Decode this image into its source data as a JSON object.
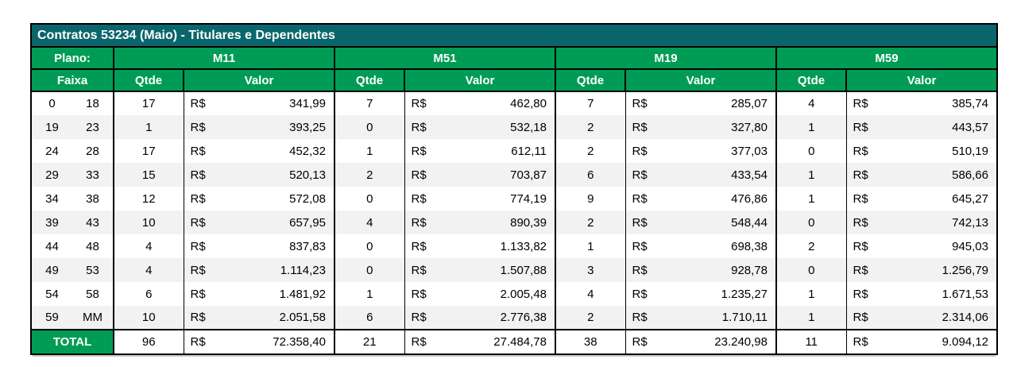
{
  "title": "Contratos 53234 (Maio) - Titulares e Dependentes",
  "header": {
    "plano_label": "Plano:",
    "faixa_label": "Faixa",
    "qtde_label": "Qtde",
    "valor_label": "Valor",
    "currency": "R$",
    "plans": [
      "M11",
      "M51",
      "M19",
      "M59"
    ]
  },
  "rows": [
    {
      "faixa": [
        "0",
        "18"
      ],
      "plans": [
        {
          "qtde": "17",
          "valor": "341,99"
        },
        {
          "qtde": "7",
          "valor": "462,80"
        },
        {
          "qtde": "7",
          "valor": "285,07"
        },
        {
          "qtde": "4",
          "valor": "385,74"
        }
      ]
    },
    {
      "faixa": [
        "19",
        "23"
      ],
      "plans": [
        {
          "qtde": "1",
          "valor": "393,25"
        },
        {
          "qtde": "0",
          "valor": "532,18"
        },
        {
          "qtde": "2",
          "valor": "327,80"
        },
        {
          "qtde": "1",
          "valor": "443,57"
        }
      ]
    },
    {
      "faixa": [
        "24",
        "28"
      ],
      "plans": [
        {
          "qtde": "17",
          "valor": "452,32"
        },
        {
          "qtde": "1",
          "valor": "612,11"
        },
        {
          "qtde": "2",
          "valor": "377,03"
        },
        {
          "qtde": "0",
          "valor": "510,19"
        }
      ]
    },
    {
      "faixa": [
        "29",
        "33"
      ],
      "plans": [
        {
          "qtde": "15",
          "valor": "520,13"
        },
        {
          "qtde": "2",
          "valor": "703,87"
        },
        {
          "qtde": "6",
          "valor": "433,54"
        },
        {
          "qtde": "1",
          "valor": "586,66"
        }
      ]
    },
    {
      "faixa": [
        "34",
        "38"
      ],
      "plans": [
        {
          "qtde": "12",
          "valor": "572,08"
        },
        {
          "qtde": "0",
          "valor": "774,19"
        },
        {
          "qtde": "9",
          "valor": "476,86"
        },
        {
          "qtde": "1",
          "valor": "645,27"
        }
      ]
    },
    {
      "faixa": [
        "39",
        "43"
      ],
      "plans": [
        {
          "qtde": "10",
          "valor": "657,95"
        },
        {
          "qtde": "4",
          "valor": "890,39"
        },
        {
          "qtde": "2",
          "valor": "548,44"
        },
        {
          "qtde": "0",
          "valor": "742,13"
        }
      ]
    },
    {
      "faixa": [
        "44",
        "48"
      ],
      "plans": [
        {
          "qtde": "4",
          "valor": "837,83"
        },
        {
          "qtde": "0",
          "valor": "1.133,82"
        },
        {
          "qtde": "1",
          "valor": "698,38"
        },
        {
          "qtde": "2",
          "valor": "945,03"
        }
      ]
    },
    {
      "faixa": [
        "49",
        "53"
      ],
      "plans": [
        {
          "qtde": "4",
          "valor": "1.114,23"
        },
        {
          "qtde": "0",
          "valor": "1.507,88"
        },
        {
          "qtde": "3",
          "valor": "928,78"
        },
        {
          "qtde": "0",
          "valor": "1.256,79"
        }
      ]
    },
    {
      "faixa": [
        "54",
        "58"
      ],
      "plans": [
        {
          "qtde": "6",
          "valor": "1.481,92"
        },
        {
          "qtde": "1",
          "valor": "2.005,48"
        },
        {
          "qtde": "4",
          "valor": "1.235,27"
        },
        {
          "qtde": "1",
          "valor": "1.671,53"
        }
      ]
    },
    {
      "faixa": [
        "59",
        "MM"
      ],
      "plans": [
        {
          "qtde": "10",
          "valor": "2.051,58"
        },
        {
          "qtde": "6",
          "valor": "2.776,38"
        },
        {
          "qtde": "2",
          "valor": "1.710,11"
        },
        {
          "qtde": "1",
          "valor": "2.314,06"
        }
      ]
    }
  ],
  "total": {
    "label": "TOTAL",
    "plans": [
      {
        "qtde": "96",
        "valor": "72.358,40"
      },
      {
        "qtde": "21",
        "valor": "27.484,78"
      },
      {
        "qtde": "38",
        "valor": "23.240,98"
      },
      {
        "qtde": "11",
        "valor": "9.094,12"
      }
    ]
  },
  "colors": {
    "title_bg": "#0a666c",
    "header_bg": "#009c55",
    "row_alt_bg": "#f2f2f2",
    "border": "#000000",
    "header_text": "#ffffff",
    "body_text": "#000000"
  }
}
